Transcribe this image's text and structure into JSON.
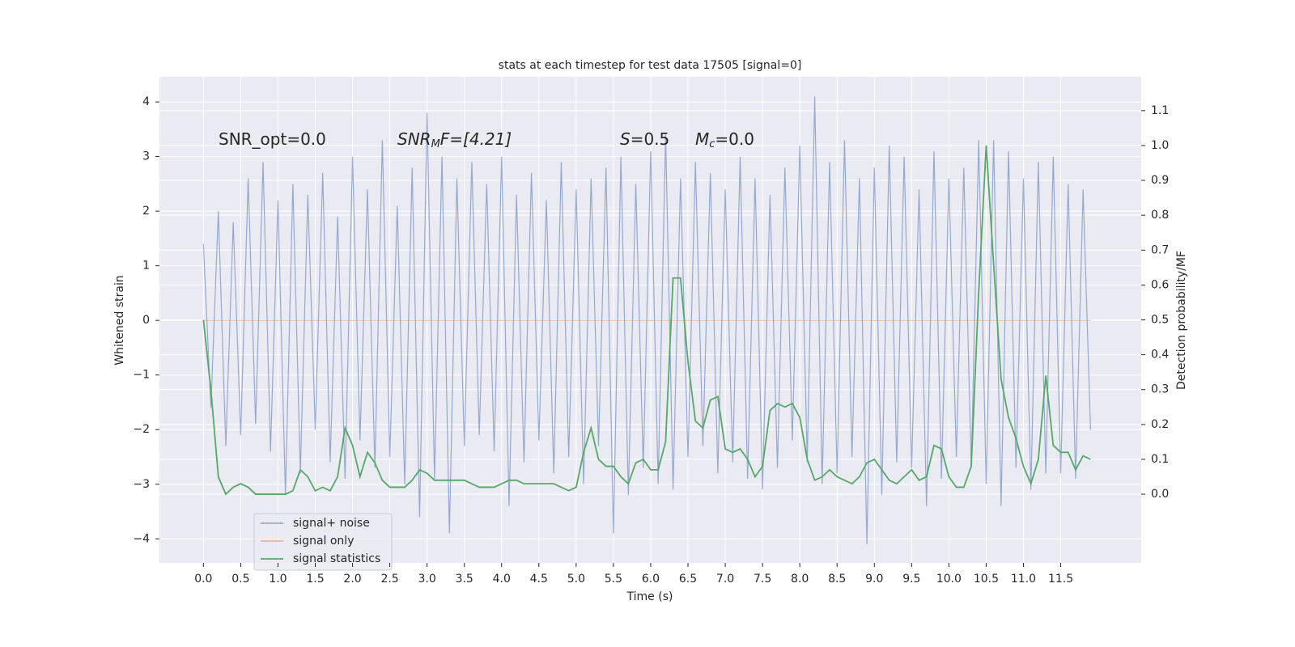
{
  "chart_data": {
    "type": "line",
    "title": "stats at each timestep for test data 17505 [signal=0]",
    "x_label": "Time (s)",
    "y_label": "Whitened strain",
    "y2_label": "Detection probability/MF",
    "annotations": [
      [
        "SNR_opt=0.0"
      ],
      [
        "SNR",
        "M",
        "F=[4.21]"
      ],
      [
        "S",
        "=0.5"
      ],
      [
        "M",
        "c",
        "=0.0"
      ]
    ],
    "xlim": [
      -0.59,
      12.58
    ],
    "ylim": [
      -4.44,
      4.46
    ],
    "y2lim": [
      -0.197,
      1.197
    ],
    "xticks": [
      {
        "value": 0,
        "label": "0.0"
      },
      0.5,
      {
        "value": 1,
        "label": "1.0"
      },
      1.5,
      {
        "value": 2,
        "label": "2.0"
      },
      2.5,
      {
        "value": 3,
        "label": "3.0"
      },
      3.5,
      {
        "value": 4,
        "label": "4.0"
      },
      4.5,
      {
        "value": 5,
        "label": "5.0"
      },
      5.5,
      {
        "value": 6,
        "label": "6.0"
      },
      6.5,
      {
        "value": 7,
        "label": "7.0"
      },
      7.5,
      {
        "value": 8,
        "label": "8.0"
      },
      8.5,
      {
        "value": 9,
        "label": "9.0"
      },
      9.5,
      {
        "value": 10,
        "label": "10.0"
      },
      10.5,
      {
        "value": 11,
        "label": "11.0"
      },
      11.5
    ],
    "yticks": [
      {
        "value": -4,
        "label": "−4"
      },
      {
        "value": -3,
        "label": "−3"
      },
      {
        "value": -2,
        "label": "−2"
      },
      {
        "value": -1,
        "label": "−1"
      },
      0,
      1,
      2,
      3,
      4
    ],
    "y2ticks": [
      {
        "value": 0,
        "label": "0.0"
      },
      0.1,
      0.2,
      0.3,
      0.4,
      0.5,
      0.6,
      0.7,
      0.8,
      0.9,
      {
        "value": 1,
        "label": "1.0"
      },
      1.1
    ],
    "grid": true,
    "legend": "lower left",
    "x": [
      0,
      0.1,
      0.2,
      0.3,
      0.4,
      0.5,
      0.6,
      0.7,
      0.8,
      0.9,
      1,
      1.1,
      1.2,
      1.3,
      1.4,
      1.5,
      1.6,
      1.7,
      1.8,
      1.9,
      2,
      2.1,
      2.2,
      2.3,
      2.4,
      2.5,
      2.6,
      2.7,
      2.8,
      2.9,
      3,
      3.1,
      3.2,
      3.3,
      3.4,
      3.5,
      3.6,
      3.7,
      3.8,
      3.9,
      4,
      4.1,
      4.2,
      4.3,
      4.4,
      4.5,
      4.6,
      4.7,
      4.8,
      4.9,
      5,
      5.1,
      5.2,
      5.3,
      5.4,
      5.5,
      5.6,
      5.7,
      5.8,
      5.9,
      6,
      6.1,
      6.2,
      6.3,
      6.4,
      6.5,
      6.6,
      6.7,
      6.8,
      6.9,
      7,
      7.1,
      7.2,
      7.3,
      7.4,
      7.5,
      7.6,
      7.7,
      7.8,
      7.9,
      8,
      8.1,
      8.2,
      8.3,
      8.4,
      8.5,
      8.6,
      8.7,
      8.8,
      8.9,
      9,
      9.1,
      9.2,
      9.3,
      9.4,
      9.5,
      9.6,
      9.7,
      9.8,
      9.9,
      10,
      10.1,
      10.2,
      10.3,
      10.4,
      10.5,
      10.6,
      10.7,
      10.8,
      10.9,
      11,
      11.1,
      11.2,
      11.3,
      11.4,
      11.5,
      11.6,
      11.7,
      11.8,
      11.9
    ],
    "series": [
      {
        "name": "signal+ noise",
        "color": "#4c72b0",
        "values": [
          1.4,
          -1.6,
          2.0,
          -2.3,
          1.8,
          -2.1,
          2.6,
          -1.9,
          2.9,
          -2.4,
          2.2,
          -3.2,
          2.5,
          -2.8,
          2.3,
          -2.0,
          2.7,
          -2.6,
          1.9,
          -2.9,
          3.0,
          -2.2,
          2.4,
          -2.7,
          3.3,
          -2.5,
          2.1,
          -3.0,
          2.8,
          -3.6,
          3.8,
          -2.9,
          3.0,
          -3.9,
          2.6,
          -2.3,
          2.9,
          -2.1,
          2.5,
          -2.4,
          3.0,
          -3.4,
          2.3,
          -2.6,
          2.7,
          -2.2,
          2.2,
          -2.8,
          2.9,
          -2.5,
          2.4,
          -3.0,
          2.6,
          -2.3,
          2.8,
          -3.9,
          3.0,
          -3.2,
          2.5,
          -2.7,
          3.1,
          -3.0,
          3.4,
          -3.1,
          2.6,
          -2.5,
          2.9,
          -2.3,
          2.7,
          -2.8,
          2.4,
          -2.6,
          3.0,
          -2.9,
          2.6,
          -3.1,
          2.3,
          -2.7,
          2.8,
          -2.2,
          3.2,
          -2.6,
          4.1,
          -3.0,
          2.9,
          -2.8,
          3.3,
          -2.5,
          2.6,
          -4.1,
          2.8,
          -3.2,
          3.2,
          -2.6,
          3.0,
          -2.7,
          2.4,
          -3.4,
          3.1,
          -2.9,
          2.6,
          -2.5,
          2.8,
          -2.7,
          3.3,
          -3.0,
          3.3,
          -3.4,
          3.1,
          -2.7,
          2.6,
          -3.1,
          2.9,
          -2.8,
          3.0,
          -2.8,
          2.5,
          -2.9,
          2.4,
          -2.0
        ]
      },
      {
        "name": "signal only",
        "color": "#dd8452",
        "x": [
          0,
          11.9
        ],
        "values": [
          0,
          0
        ]
      },
      {
        "name": "signal statistics",
        "color": "#55a868",
        "axis": "y2",
        "values": [
          0.5,
          0.3,
          0.05,
          0.0,
          0.02,
          0.03,
          0.02,
          0.0,
          0.0,
          0.0,
          0.0,
          0.0,
          0.01,
          0.07,
          0.05,
          0.01,
          0.02,
          0.01,
          0.05,
          0.19,
          0.14,
          0.05,
          0.12,
          0.09,
          0.04,
          0.02,
          0.02,
          0.02,
          0.04,
          0.07,
          0.06,
          0.04,
          0.04,
          0.04,
          0.04,
          0.04,
          0.03,
          0.02,
          0.02,
          0.02,
          0.03,
          0.04,
          0.04,
          0.03,
          0.03,
          0.03,
          0.03,
          0.03,
          0.02,
          0.01,
          0.02,
          0.12,
          0.19,
          0.1,
          0.08,
          0.08,
          0.05,
          0.03,
          0.09,
          0.1,
          0.07,
          0.07,
          0.15,
          0.62,
          0.62,
          0.38,
          0.21,
          0.19,
          0.27,
          0.28,
          0.13,
          0.12,
          0.13,
          0.1,
          0.05,
          0.08,
          0.24,
          0.26,
          0.25,
          0.26,
          0.22,
          0.1,
          0.04,
          0.05,
          0.07,
          0.05,
          0.04,
          0.03,
          0.05,
          0.09,
          0.1,
          0.07,
          0.04,
          0.03,
          0.05,
          0.07,
          0.04,
          0.05,
          0.14,
          0.13,
          0.05,
          0.02,
          0.02,
          0.08,
          0.58,
          1.0,
          0.66,
          0.33,
          0.22,
          0.16,
          0.08,
          0.03,
          0.1,
          0.34,
          0.14,
          0.12,
          0.12,
          0.07,
          0.11,
          0.1
        ]
      }
    ]
  }
}
